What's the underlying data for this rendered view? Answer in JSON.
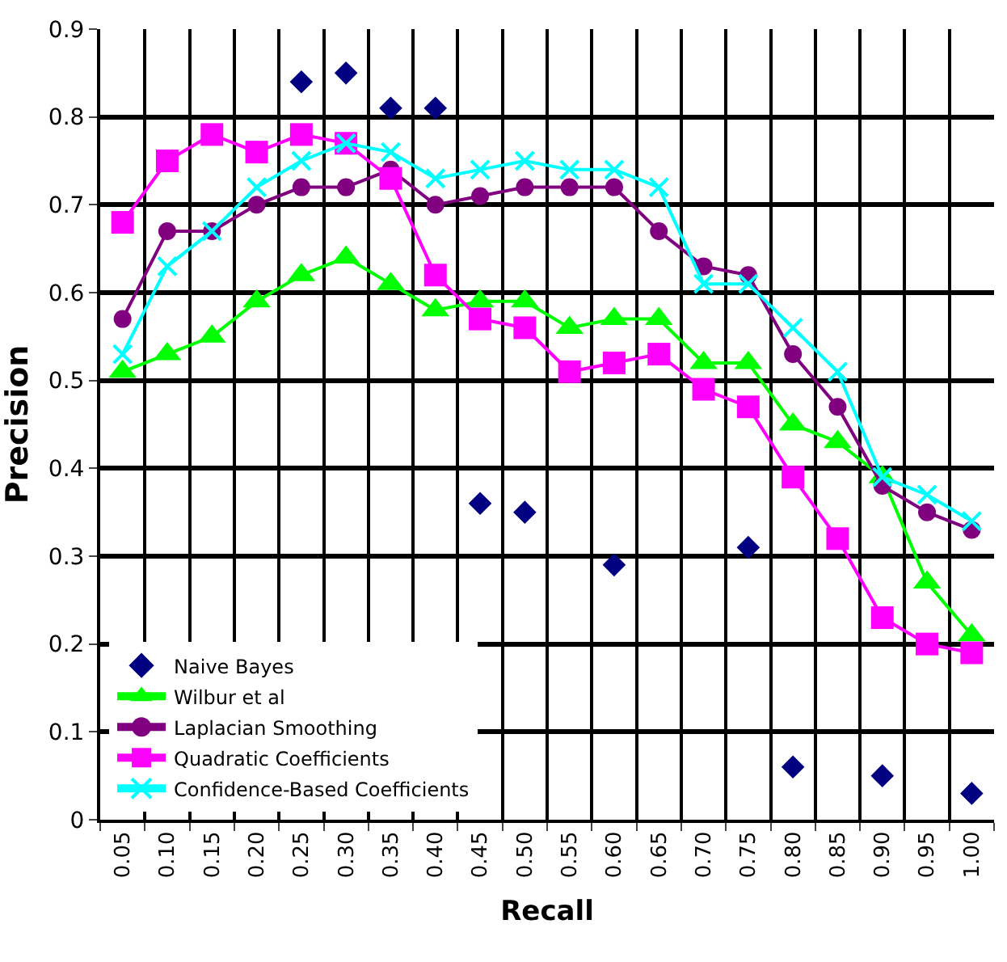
{
  "chart_data": {
    "type": "line",
    "xlabel": "Recall",
    "ylabel": "Precision",
    "categories": [
      "0.05",
      "0.10",
      "0.15",
      "0.20",
      "0.25",
      "0.30",
      "0.35",
      "0.40",
      "0.45",
      "0.50",
      "0.55",
      "0.60",
      "0.65",
      "0.70",
      "0.75",
      "0.80",
      "0.85",
      "0.90",
      "0.95",
      "1.00"
    ],
    "ylim": [
      0,
      0.9
    ],
    "yticks": [
      0,
      0.1,
      0.2,
      0.3,
      0.4,
      0.5,
      0.6,
      0.7,
      0.8,
      0.9
    ],
    "grid": true,
    "legend": "bottom left",
    "series": [
      {
        "name": "Naive Bayes",
        "type": "scatter",
        "marker": "diamond",
        "color": "#000080",
        "values": [
          null,
          null,
          null,
          null,
          0.84,
          0.85,
          0.81,
          0.81,
          0.36,
          0.35,
          null,
          0.29,
          null,
          null,
          0.31,
          0.06,
          null,
          0.05,
          null,
          0.03
        ]
      },
      {
        "name": "Wilbur et al",
        "marker": "triangle",
        "color": "#00ff00",
        "values": [
          0.51,
          0.53,
          0.55,
          0.59,
          0.62,
          0.64,
          0.61,
          0.58,
          0.59,
          0.59,
          0.56,
          0.57,
          0.57,
          0.52,
          0.52,
          0.45,
          0.43,
          0.39,
          0.27,
          0.21
        ]
      },
      {
        "name": "Laplacian Smoothing",
        "marker": "circle",
        "color": "#800080",
        "values": [
          0.57,
          0.67,
          0.67,
          0.7,
          0.72,
          0.72,
          0.74,
          0.7,
          0.71,
          0.72,
          0.72,
          0.72,
          0.67,
          0.63,
          0.62,
          0.53,
          0.47,
          0.38,
          0.35,
          0.33
        ]
      },
      {
        "name": "Quadratic Coefficients",
        "marker": "square",
        "color": "#ff00ff",
        "values": [
          0.68,
          0.75,
          0.78,
          0.76,
          0.78,
          0.77,
          0.73,
          0.62,
          0.57,
          0.56,
          0.51,
          0.52,
          0.53,
          0.49,
          0.47,
          0.39,
          0.32,
          0.23,
          0.2,
          0.19
        ]
      },
      {
        "name": "Confidence-Based Coefficients",
        "marker": "cross",
        "color": "#00ffff",
        "values": [
          0.53,
          0.63,
          0.67,
          0.72,
          0.75,
          0.77,
          0.76,
          0.73,
          0.74,
          0.75,
          0.74,
          0.74,
          0.72,
          0.61,
          0.61,
          0.56,
          0.51,
          0.39,
          0.37,
          0.34
        ]
      }
    ]
  }
}
